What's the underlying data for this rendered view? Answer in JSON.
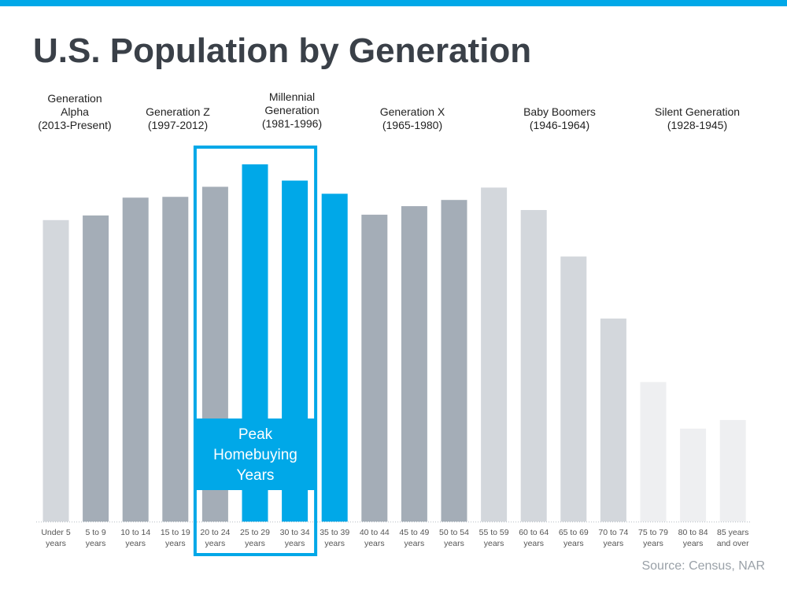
{
  "title": "U.S. Population by Generation",
  "source": "Source: Census, NAR",
  "generations": [
    {
      "lines": [
        "Generation",
        "Alpha",
        "(2013-Present)"
      ]
    },
    {
      "lines": [
        "Generation Z",
        "(1997-2012)"
      ]
    },
    {
      "lines": [
        "Millennial",
        "Generation",
        "(1981-1996)"
      ]
    },
    {
      "lines": [
        "Generation X",
        "(1965-1980)"
      ]
    },
    {
      "lines": [
        "Baby Boomers",
        "(1946-1964)"
      ]
    },
    {
      "lines": [
        "Silent Generation",
        "(1928-1945)"
      ]
    }
  ],
  "highlight": {
    "label_lines": [
      "Peak",
      "Homebuying",
      "Years"
    ],
    "categories": [
      "20 to 24 years",
      "25 to 29 years",
      "30 to 34 years"
    ]
  },
  "colors": {
    "accent": "#00a8e8",
    "alpha": "#d3d7dc",
    "genz": "#a4adb7",
    "millennial": "#00a8e8",
    "genx": "#a4adb7",
    "boomers": "#d3d7dc",
    "silent": "#eeeff1"
  },
  "chart_data": {
    "type": "bar",
    "title": "U.S. Population by Generation",
    "xlabel": "",
    "ylabel": "",
    "grid": false,
    "categories": [
      [
        "Under 5",
        "years"
      ],
      [
        "5 to 9",
        "years"
      ],
      [
        "10 to 14",
        "years"
      ],
      [
        "15 to 19",
        "years"
      ],
      [
        "20 to 24",
        "years"
      ],
      [
        "25 to 29",
        "years"
      ],
      [
        "30 to 34",
        "years"
      ],
      [
        "35 to 39",
        "years"
      ],
      [
        "40 to 44",
        "years"
      ],
      [
        "45 to 49",
        "years"
      ],
      [
        "50 to 54",
        "years"
      ],
      [
        "55 to 59",
        "years"
      ],
      [
        "60 to 64",
        "years"
      ],
      [
        "65 to 69",
        "years"
      ],
      [
        "70 to 74",
        "years"
      ],
      [
        "75 to 79",
        "years"
      ],
      [
        "80 to 84",
        "years"
      ],
      [
        "85 years",
        "and over"
      ]
    ],
    "values": [
      389,
      395,
      418,
      419,
      432,
      461,
      440,
      423,
      396,
      407,
      415,
      431,
      402,
      342,
      262,
      180,
      120,
      131
    ],
    "ylim": [
      0,
      470
    ],
    "generation_of_bar": [
      "alpha",
      "genz",
      "genz",
      "genz",
      "genz",
      "millennial",
      "millennial",
      "millennial",
      "genx",
      "genx",
      "genx",
      "boomers",
      "boomers",
      "boomers",
      "boomers",
      "silent",
      "silent",
      "silent"
    ]
  }
}
